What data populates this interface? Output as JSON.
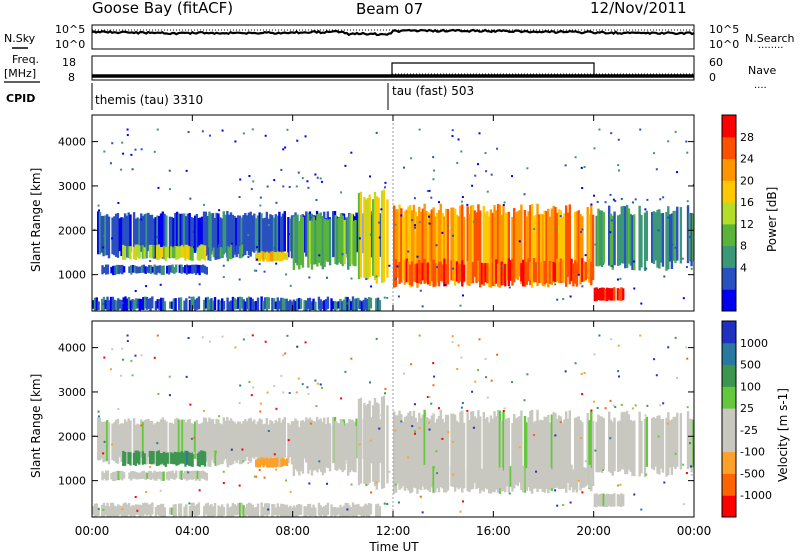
{
  "header": {
    "station": "Goose Bay (fitACF)",
    "beam": "Beam 07",
    "date": "12/Nov/2011"
  },
  "left_labels": {
    "nsky": "N.Sky",
    "freq_line1": "Freq.",
    "freq_line2": "[MHz]",
    "cpid": "CPID"
  },
  "right_labels": {
    "nsearch": "N.Search",
    "nsearch_dots": "........",
    "nave": "Nave",
    "nave_dots": "...."
  },
  "cpid_labels": {
    "first": "themis (tau) 3310",
    "second": "tau (fast) 503"
  },
  "noise_axes": {
    "left_top": "10^5",
    "left_bottom": "10^0",
    "right_top": "10^5",
    "right_bottom": "10^0"
  },
  "freq_axes": {
    "left_top": "18",
    "left_bottom": "8",
    "right_top": "60",
    "right_bottom": "0"
  },
  "power_panel": {
    "ylabel": "Slant Range [km]",
    "cbar_label": "Power [dB]",
    "cbar_ticks": [
      "28",
      "24",
      "20",
      "16",
      "12",
      "8",
      "4"
    ],
    "colors": [
      "#0000f0",
      "#2850c0",
      "#3c9678",
      "#5ab43c",
      "#b4dc28",
      "#ffc800",
      "#ff9600",
      "#ff5000",
      "#ff0000"
    ]
  },
  "velocity_panel": {
    "ylabel": "Slant Range [km]",
    "cbar_label": "Velocity [m s-1]",
    "cbar_ticks": [
      "1000",
      "500",
      "100",
      "25",
      "-25",
      "-100",
      "-500",
      "-1000"
    ],
    "colors": [
      "#2030c0",
      "#2878a0",
      "#3c9650",
      "#64c83c",
      "#c8c8c0",
      "#c8c8c0",
      "#ffa028",
      "#ff6400",
      "#ff0000"
    ]
  },
  "x_axis": {
    "label": "Time UT",
    "ticks": [
      "00:00",
      "04:00",
      "08:00",
      "12:00",
      "16:00",
      "20:00",
      "00:00"
    ]
  },
  "chart_data": {
    "type": "heatmap",
    "title": "Goose Bay (fitACF)   Beam 07   12/Nov/2011",
    "xlabel": "Time UT",
    "ylabel": "Slant Range [km]",
    "x_range_hours": [
      0,
      24
    ],
    "y_range_km": [
      180,
      4600
    ],
    "y_ticks": [
      1000,
      2000,
      3000,
      4000
    ],
    "x_ticks": [
      "00:00",
      "04:00",
      "08:00",
      "12:00",
      "16:00",
      "20:00",
      "00:00"
    ],
    "power_ticks_db": [
      4,
      8,
      12,
      16,
      20,
      24,
      28
    ],
    "velocity_ticks_ms": [
      -1000,
      -500,
      -100,
      -25,
      25,
      100,
      500,
      1000
    ],
    "cpid_changes": [
      {
        "start_hour": 0,
        "program": "themis (tau) 3310"
      },
      {
        "start_hour": 12,
        "program": "tau (fast) 503"
      }
    ],
    "nave": [
      {
        "start_hour": 0,
        "end_hour": 12,
        "value": 0
      },
      {
        "start_hour": 12,
        "end_hour": 20,
        "value": 60
      },
      {
        "start_hour": 20,
        "end_hour": 24,
        "value": 0
      }
    ],
    "echo_regions": [
      {
        "name": "band1",
        "hours": [
          0,
          11.5
        ],
        "range_km": [
          1400,
          2400
        ],
        "power_db": 8,
        "velocity": "near zero"
      },
      {
        "name": "blob1",
        "hours": [
          1.2,
          4.6
        ],
        "range_km": [
          1300,
          1700
        ],
        "power_db": 20,
        "velocity": "-100 to 100"
      },
      {
        "name": "blob2",
        "hours": [
          0.3,
          4.6
        ],
        "range_km": [
          1000,
          1200
        ],
        "power_db": 8,
        "velocity": "near zero"
      },
      {
        "name": "blob3",
        "hours": [
          6.5,
          7.8
        ],
        "range_km": [
          1300,
          1500
        ],
        "power_db": 20,
        "velocity": "-100"
      },
      {
        "name": "band2",
        "hours": [
          12,
          24
        ],
        "range_km": [
          800,
          2500
        ],
        "power_db": 20,
        "velocity": "near zero"
      },
      {
        "name": "red_patch",
        "hours": [
          20,
          21.2
        ],
        "range_km": [
          400,
          700
        ],
        "power_db": 28,
        "velocity": "-25 to 25"
      },
      {
        "name": "gs_near",
        "hours": [
          0,
          11.5
        ],
        "range_km": [
          180,
          600
        ],
        "power_db": 8,
        "velocity": "near zero"
      }
    ]
  }
}
